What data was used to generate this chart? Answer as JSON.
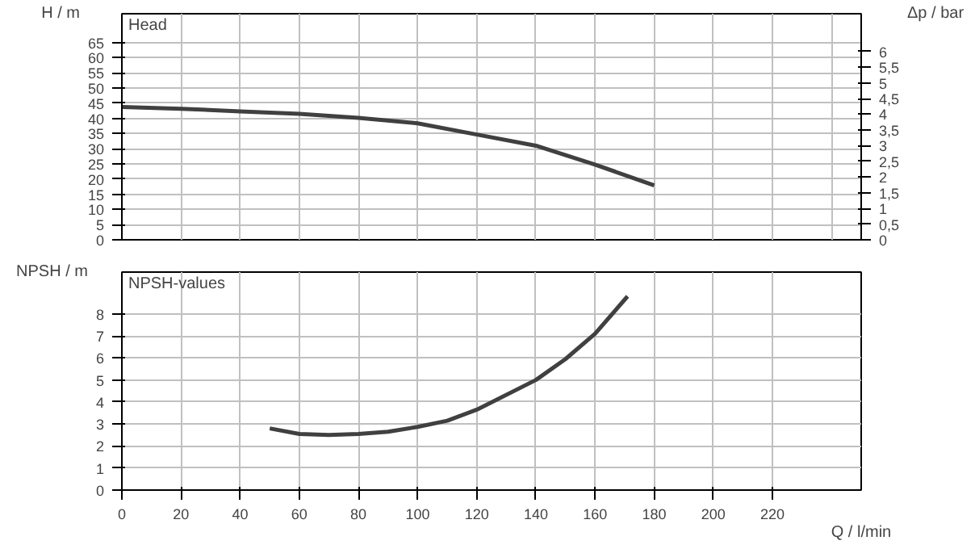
{
  "chart_data": [
    {
      "type": "line",
      "title": "Head",
      "ylabel": "H / m",
      "y2label": "Δp / bar",
      "x": [
        0,
        20,
        40,
        60,
        80,
        100,
        120,
        140,
        160,
        180
      ],
      "series": [
        {
          "color": "#404040",
          "values": [
            43.8,
            43.2,
            42.3,
            41.5,
            40.2,
            38.4,
            34.7,
            31,
            24.8,
            17.9
          ]
        }
      ],
      "xlim": [
        0,
        250
      ],
      "xticks": [
        0,
        20,
        40,
        60,
        80,
        100,
        120,
        140,
        160,
        180,
        200,
        220,
        240
      ],
      "ylim": [
        0,
        74.5
      ],
      "yticks": [
        0,
        5,
        10,
        15,
        20,
        25,
        30,
        35,
        40,
        45,
        50,
        55,
        60,
        65
      ],
      "y2lim": [
        0,
        7.2
      ],
      "y2ticks": [
        0,
        {
          "value": 0.5,
          "label": "0,5"
        },
        1,
        {
          "value": 1.5,
          "label": "1,5"
        },
        2,
        {
          "value": 2.5,
          "label": "2,5"
        },
        3,
        {
          "value": 3.5,
          "label": "3,5"
        },
        4,
        {
          "value": 4.5,
          "label": "4,5"
        },
        5,
        {
          "value": 5.5,
          "label": "5,5"
        },
        6
      ],
      "tick_labels": "y",
      "grid": true,
      "line_style": "solid"
    },
    {
      "type": "line",
      "title": "NPSH-values",
      "ylabel": "NPSH / m",
      "xlabel": "Q / l/min",
      "x": [
        50,
        60,
        70,
        80,
        90,
        100,
        110,
        120,
        140,
        150,
        160,
        171
      ],
      "series": [
        {
          "color": "#404040",
          "values": [
            2.8,
            2.55,
            2.5,
            2.55,
            2.65,
            2.87,
            3.15,
            3.65,
            5.0,
            5.95,
            7.1,
            8.8
          ]
        }
      ],
      "xlim": [
        0,
        250
      ],
      "xticks": [
        0,
        20,
        40,
        60,
        80,
        100,
        120,
        140,
        160,
        180,
        200,
        220
      ],
      "ylim": [
        0,
        9.9
      ],
      "yticks": [
        0,
        1,
        2,
        3,
        4,
        5,
        6,
        7,
        8
      ],
      "grid": true,
      "line_style": "solid"
    }
  ]
}
